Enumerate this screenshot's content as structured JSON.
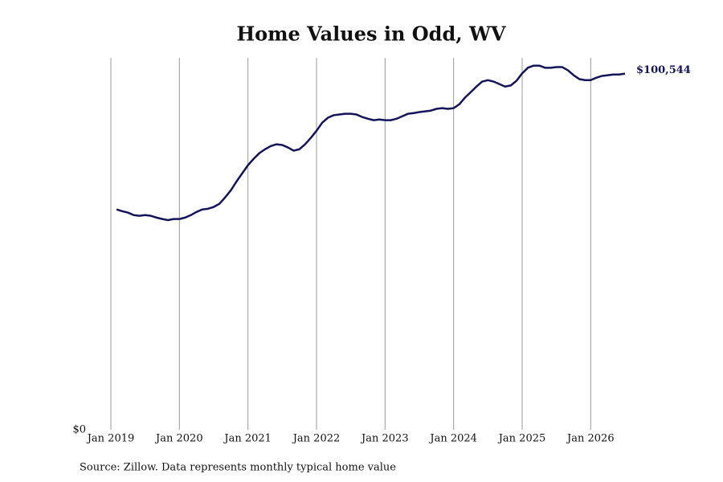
{
  "chart_data": {
    "type": "line",
    "title": "Home Values in Odd, WV",
    "source": "Source: Zillow. Data represents monthly typical home value",
    "x": [
      "2019-02",
      "2019-03",
      "2019-04",
      "2019-05",
      "2019-06",
      "2019-07",
      "2019-08",
      "2019-09",
      "2019-10",
      "2019-11",
      "2019-12",
      "2020-01",
      "2020-02",
      "2020-03",
      "2020-04",
      "2020-05",
      "2020-06",
      "2020-07",
      "2020-08",
      "2020-09",
      "2020-10",
      "2020-11",
      "2020-12",
      "2021-01",
      "2021-02",
      "2021-03",
      "2021-04",
      "2021-05",
      "2021-06",
      "2021-07",
      "2021-08",
      "2021-09",
      "2021-10",
      "2021-11",
      "2021-12",
      "2022-01",
      "2022-02",
      "2022-03",
      "2022-04",
      "2022-05",
      "2022-06",
      "2022-07",
      "2022-08",
      "2022-09",
      "2022-10",
      "2022-11",
      "2022-12",
      "2023-01",
      "2023-02",
      "2023-03",
      "2023-04",
      "2023-05",
      "2023-06",
      "2023-07",
      "2023-08",
      "2023-09",
      "2023-10",
      "2023-11",
      "2023-12",
      "2024-01",
      "2024-02",
      "2024-03",
      "2024-04",
      "2024-05",
      "2024-06",
      "2024-07",
      "2024-08",
      "2024-09",
      "2024-10",
      "2024-11",
      "2024-12",
      "2025-01",
      "2025-02",
      "2025-03",
      "2025-04",
      "2025-05",
      "2025-06",
      "2025-07",
      "2025-08",
      "2025-09",
      "2025-10",
      "2025-11",
      "2025-12",
      "2026-01",
      "2026-02",
      "2026-03",
      "2026-04",
      "2026-05",
      "2026-06",
      "2026-07"
    ],
    "series": [
      {
        "color": "#14145a",
        "values": [
          62200,
          61700,
          61300,
          60600,
          60400,
          60600,
          60400,
          59900,
          59500,
          59200,
          59500,
          59500,
          59900,
          60600,
          61500,
          62200,
          62400,
          62900,
          63800,
          65600,
          67600,
          70100,
          72400,
          74700,
          76500,
          78100,
          79200,
          80100,
          80600,
          80400,
          79700,
          78800,
          79200,
          80600,
          82400,
          84400,
          86700,
          88100,
          88800,
          89000,
          89200,
          89200,
          89000,
          88300,
          87800,
          87400,
          87600,
          87400,
          87400,
          87800,
          88500,
          89200,
          89400,
          89700,
          89900,
          90100,
          90600,
          90800,
          90600,
          90800,
          91900,
          93800,
          95300,
          96900,
          98300,
          98700,
          98300,
          97600,
          96900,
          97200,
          98500,
          100600,
          102200,
          102800,
          102800,
          102200,
          102200,
          102400,
          102400,
          101500,
          100100,
          99000,
          98700,
          98700,
          99400,
          99900,
          100100,
          100300,
          100300,
          100544
        ],
        "value_labels": [
          null,
          null,
          null,
          null,
          null,
          null,
          null,
          null,
          null,
          null,
          null,
          null,
          null,
          null,
          null,
          null,
          null,
          null,
          null,
          null,
          null,
          null,
          null,
          null,
          null,
          null,
          null,
          null,
          null,
          null,
          null,
          null,
          null,
          null,
          null,
          null,
          null,
          null,
          null,
          null,
          null,
          null,
          null,
          null,
          null,
          null,
          null,
          null,
          null,
          null,
          null,
          null,
          null,
          null,
          null,
          null,
          null,
          null,
          null,
          null,
          null,
          null,
          null,
          null,
          null,
          null,
          null,
          null,
          null,
          null,
          null,
          null,
          null,
          null,
          null,
          null,
          null,
          null,
          null,
          null,
          null,
          null,
          null,
          null,
          null,
          null,
          null,
          null,
          null,
          "$100,544"
        ]
      }
    ],
    "xlim": [
      "2019-01",
      "2026-07"
    ],
    "xticks": [
      {
        "value": "2019-01",
        "label": "Jan 2019"
      },
      {
        "value": "2020-01",
        "label": "Jan 2020"
      },
      {
        "value": "2021-01",
        "label": "Jan 2021"
      },
      {
        "value": "2022-01",
        "label": "Jan 2022"
      },
      {
        "value": "2023-01",
        "label": "Jan 2023"
      },
      {
        "value": "2024-01",
        "label": "Jan 2024"
      },
      {
        "value": "2025-01",
        "label": "Jan 2025"
      },
      {
        "value": "2026-01",
        "label": "Jan 2026"
      }
    ],
    "ylim": [
      0,
      105000
    ],
    "yticks": [
      {
        "value": 0,
        "label": "$0"
      }
    ],
    "grid": true
  }
}
